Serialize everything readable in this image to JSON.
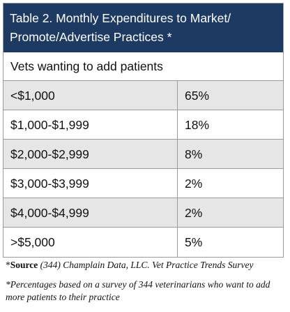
{
  "header": {
    "title_lines": [
      "Table 2. Monthly Expenditures to Market/",
      "Promote/Advertise Practices *"
    ]
  },
  "table": {
    "subheader": "Vets wanting to add patients",
    "rows": [
      [
        "<$1,000",
        "65%"
      ],
      [
        "$1,000-$1,999",
        "18%"
      ],
      [
        "$2,000-$2,999",
        "8%"
      ],
      [
        "$3,000-$3,999",
        "2%"
      ],
      [
        "$4,000-$4,999",
        "2%"
      ],
      [
        ">$5,000",
        "5%"
      ]
    ]
  },
  "footnotes": [
    {
      "marker": "*",
      "label": "Source",
      "text": "(344) Champlain Data, LLC. Vet Practice Trends Survey"
    },
    {
      "text": "*Percentages based on a survey of 344 veterinarians who want to add more patients to their practice"
    }
  ]
}
